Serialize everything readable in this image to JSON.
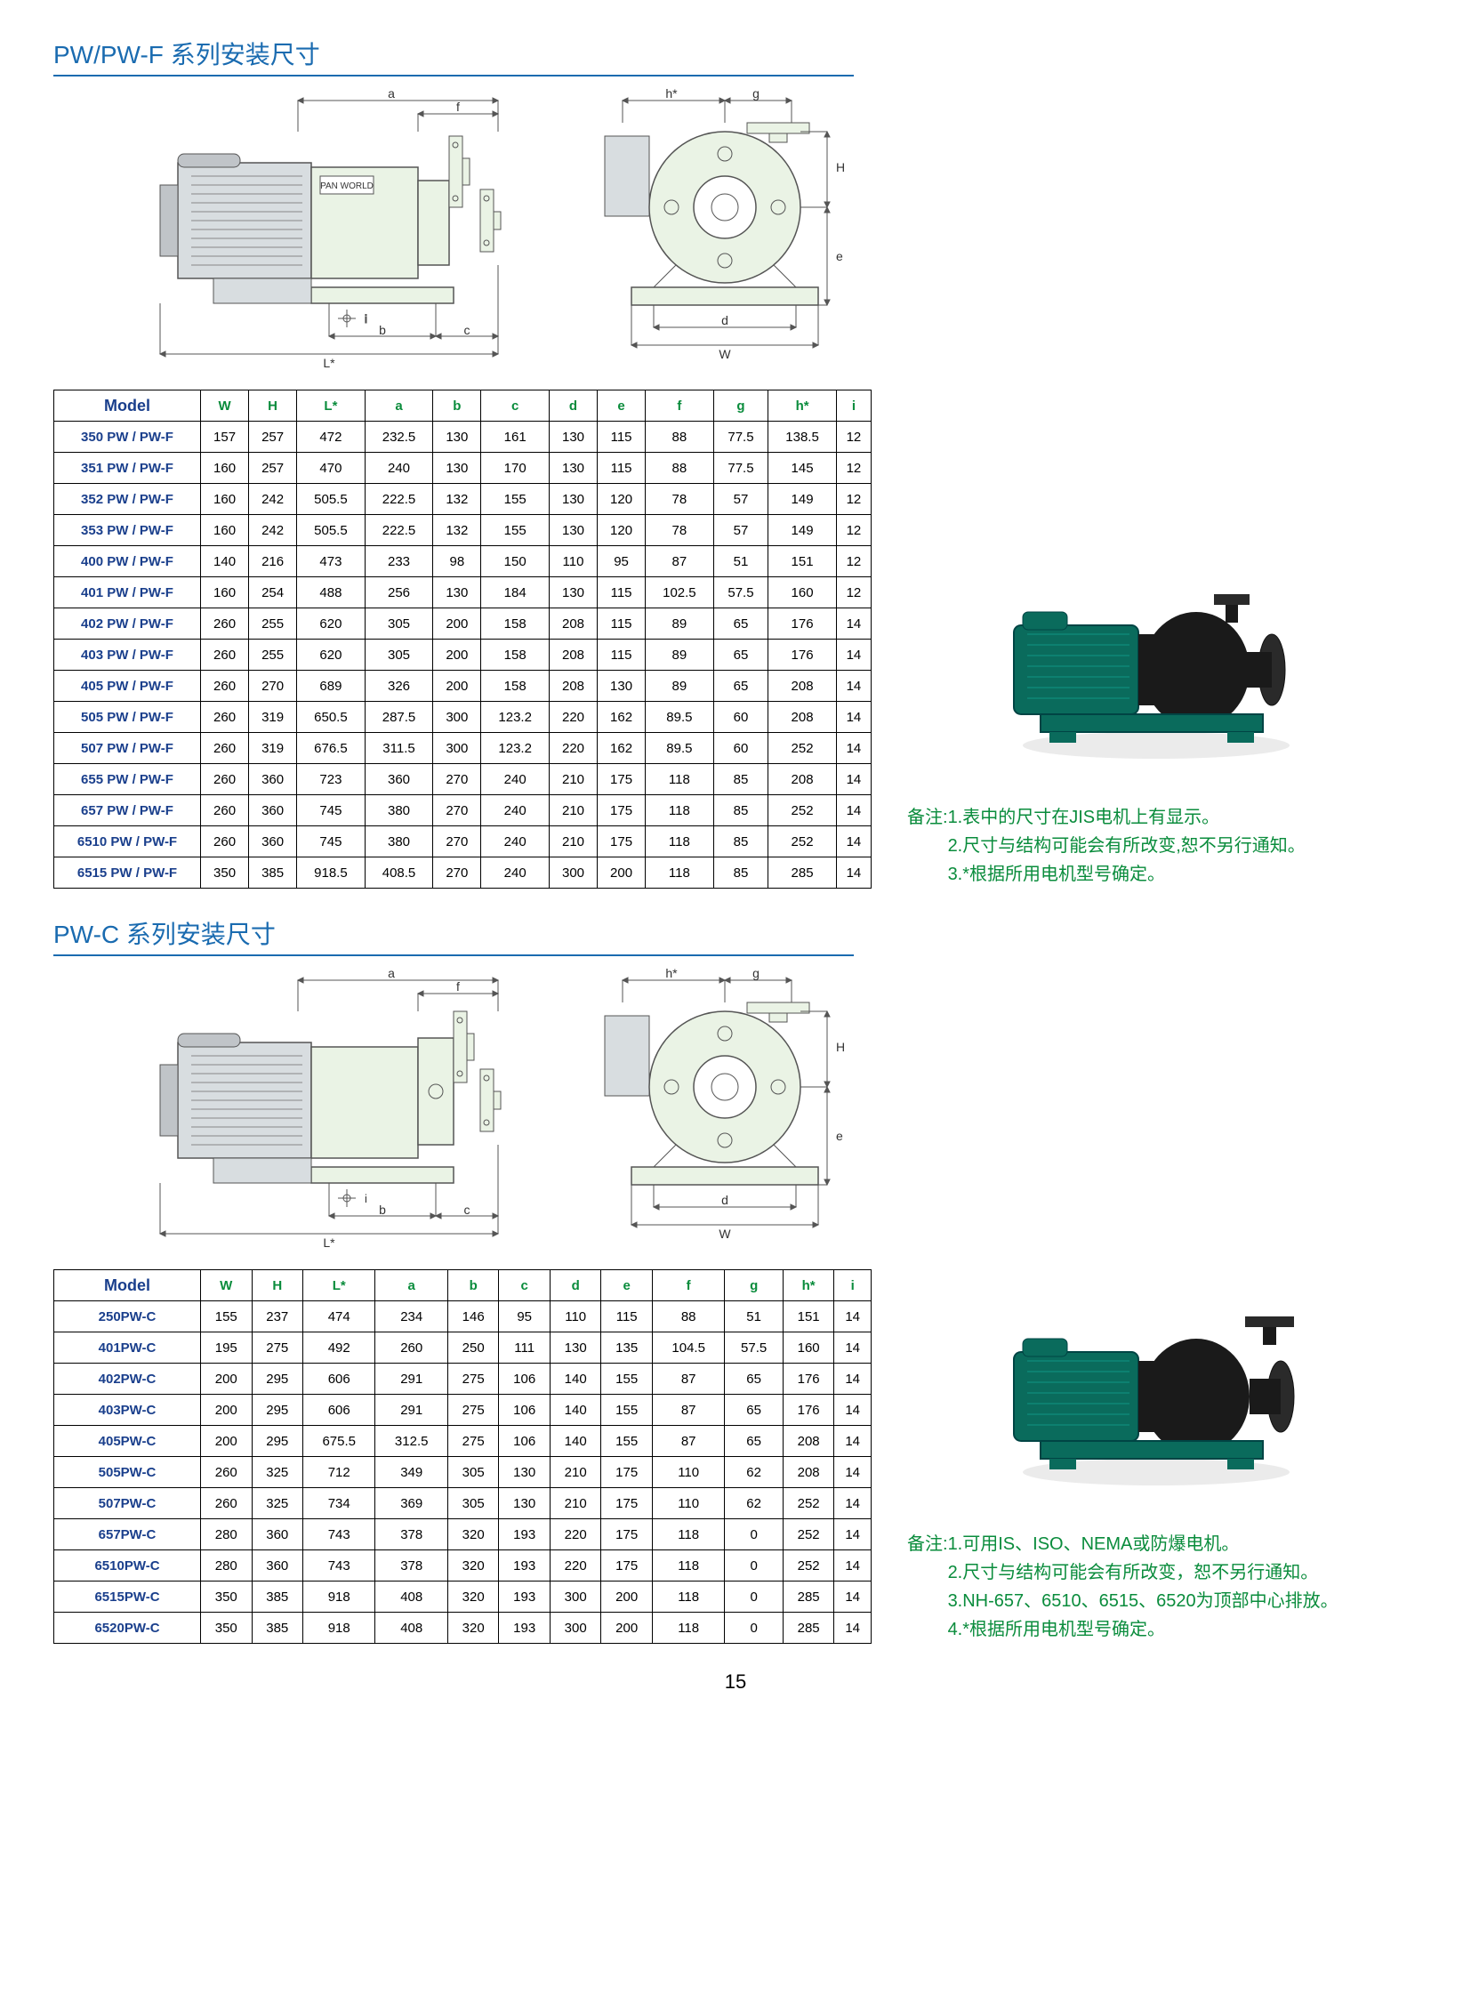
{
  "section1": {
    "title": "PW/PW-F 系列安装尺寸",
    "dim_labels": {
      "a": "a",
      "b": "b",
      "c": "c",
      "d": "d",
      "e": "e",
      "f": "f",
      "g": "g",
      "h": "h*",
      "i": "i",
      "H": "H",
      "W": "W",
      "L": "L*"
    },
    "diagram_label": "PAN WORLD",
    "table": {
      "headers": [
        "Model",
        "W",
        "H",
        "L*",
        "a",
        "b",
        "c",
        "d",
        "e",
        "f",
        "g",
        "h*",
        "i"
      ],
      "rows": [
        [
          "350 PW / PW-F",
          "157",
          "257",
          "472",
          "232.5",
          "130",
          "161",
          "130",
          "115",
          "88",
          "77.5",
          "138.5",
          "12"
        ],
        [
          "351 PW / PW-F",
          "160",
          "257",
          "470",
          "240",
          "130",
          "170",
          "130",
          "115",
          "88",
          "77.5",
          "145",
          "12"
        ],
        [
          "352 PW / PW-F",
          "160",
          "242",
          "505.5",
          "222.5",
          "132",
          "155",
          "130",
          "120",
          "78",
          "57",
          "149",
          "12"
        ],
        [
          "353 PW / PW-F",
          "160",
          "242",
          "505.5",
          "222.5",
          "132",
          "155",
          "130",
          "120",
          "78",
          "57",
          "149",
          "12"
        ],
        [
          "400 PW / PW-F",
          "140",
          "216",
          "473",
          "233",
          "98",
          "150",
          "110",
          "95",
          "87",
          "51",
          "151",
          "12"
        ],
        [
          "401 PW / PW-F",
          "160",
          "254",
          "488",
          "256",
          "130",
          "184",
          "130",
          "115",
          "102.5",
          "57.5",
          "160",
          "12"
        ],
        [
          "402 PW / PW-F",
          "260",
          "255",
          "620",
          "305",
          "200",
          "158",
          "208",
          "115",
          "89",
          "65",
          "176",
          "14"
        ],
        [
          "403 PW / PW-F",
          "260",
          "255",
          "620",
          "305",
          "200",
          "158",
          "208",
          "115",
          "89",
          "65",
          "176",
          "14"
        ],
        [
          "405 PW / PW-F",
          "260",
          "270",
          "689",
          "326",
          "200",
          "158",
          "208",
          "130",
          "89",
          "65",
          "208",
          "14"
        ],
        [
          "505 PW / PW-F",
          "260",
          "319",
          "650.5",
          "287.5",
          "300",
          "123.2",
          "220",
          "162",
          "89.5",
          "60",
          "208",
          "14"
        ],
        [
          "507 PW / PW-F",
          "260",
          "319",
          "676.5",
          "311.5",
          "300",
          "123.2",
          "220",
          "162",
          "89.5",
          "60",
          "252",
          "14"
        ],
        [
          "655 PW / PW-F",
          "260",
          "360",
          "723",
          "360",
          "270",
          "240",
          "210",
          "175",
          "118",
          "85",
          "208",
          "14"
        ],
        [
          "657 PW / PW-F",
          "260",
          "360",
          "745",
          "380",
          "270",
          "240",
          "210",
          "175",
          "118",
          "85",
          "252",
          "14"
        ],
        [
          "6510 PW / PW-F",
          "260",
          "360",
          "745",
          "380",
          "270",
          "240",
          "210",
          "175",
          "118",
          "85",
          "252",
          "14"
        ],
        [
          "6515 PW / PW-F",
          "350",
          "385",
          "918.5",
          "408.5",
          "270",
          "240",
          "300",
          "200",
          "118",
          "85",
          "285",
          "14"
        ]
      ]
    },
    "notes": {
      "prefix": "备注:",
      "items": [
        "1.表中的尺寸在JIS电机上有显示。",
        "2.尺寸与结构可能会有所改变,恕不另行通知。",
        "3.*根据所用电机型号确定。"
      ]
    }
  },
  "section2": {
    "title": "PW-C 系列安装尺寸",
    "table": {
      "headers": [
        "Model",
        "W",
        "H",
        "L*",
        "a",
        "b",
        "c",
        "d",
        "e",
        "f",
        "g",
        "h*",
        "i"
      ],
      "rows": [
        [
          "250PW-C",
          "155",
          "237",
          "474",
          "234",
          "146",
          "95",
          "110",
          "115",
          "88",
          "51",
          "151",
          "14"
        ],
        [
          "401PW-C",
          "195",
          "275",
          "492",
          "260",
          "250",
          "111",
          "130",
          "135",
          "104.5",
          "57.5",
          "160",
          "14"
        ],
        [
          "402PW-C",
          "200",
          "295",
          "606",
          "291",
          "275",
          "106",
          "140",
          "155",
          "87",
          "65",
          "176",
          "14"
        ],
        [
          "403PW-C",
          "200",
          "295",
          "606",
          "291",
          "275",
          "106",
          "140",
          "155",
          "87",
          "65",
          "176",
          "14"
        ],
        [
          "405PW-C",
          "200",
          "295",
          "675.5",
          "312.5",
          "275",
          "106",
          "140",
          "155",
          "87",
          "65",
          "208",
          "14"
        ],
        [
          "505PW-C",
          "260",
          "325",
          "712",
          "349",
          "305",
          "130",
          "210",
          "175",
          "110",
          "62",
          "208",
          "14"
        ],
        [
          "507PW-C",
          "260",
          "325",
          "734",
          "369",
          "305",
          "130",
          "210",
          "175",
          "110",
          "62",
          "252",
          "14"
        ],
        [
          "657PW-C",
          "280",
          "360",
          "743",
          "378",
          "320",
          "193",
          "220",
          "175",
          "118",
          "0",
          "252",
          "14"
        ],
        [
          "6510PW-C",
          "280",
          "360",
          "743",
          "378",
          "320",
          "193",
          "220",
          "175",
          "118",
          "0",
          "252",
          "14"
        ],
        [
          "6515PW-C",
          "350",
          "385",
          "918",
          "408",
          "320",
          "193",
          "300",
          "200",
          "118",
          "0",
          "285",
          "14"
        ],
        [
          "6520PW-C",
          "350",
          "385",
          "918",
          "408",
          "320",
          "193",
          "300",
          "200",
          "118",
          "0",
          "285",
          "14"
        ]
      ]
    },
    "notes": {
      "prefix": "备注:",
      "items": [
        "1.可用IS、ISO、NEMA或防爆电机。",
        "2.尺寸与结构可能会有所改变，恕不另行通知。",
        "3.NH-657、6510、6515、6520为顶部中心排放。",
        "4.*根据所用电机型号确定。"
      ]
    }
  },
  "page_number": "15",
  "colors": {
    "title_color": "#1a6bb0",
    "header_green": "#0a8c3c",
    "model_blue": "#1a3f8c",
    "border_color": "#000000"
  }
}
